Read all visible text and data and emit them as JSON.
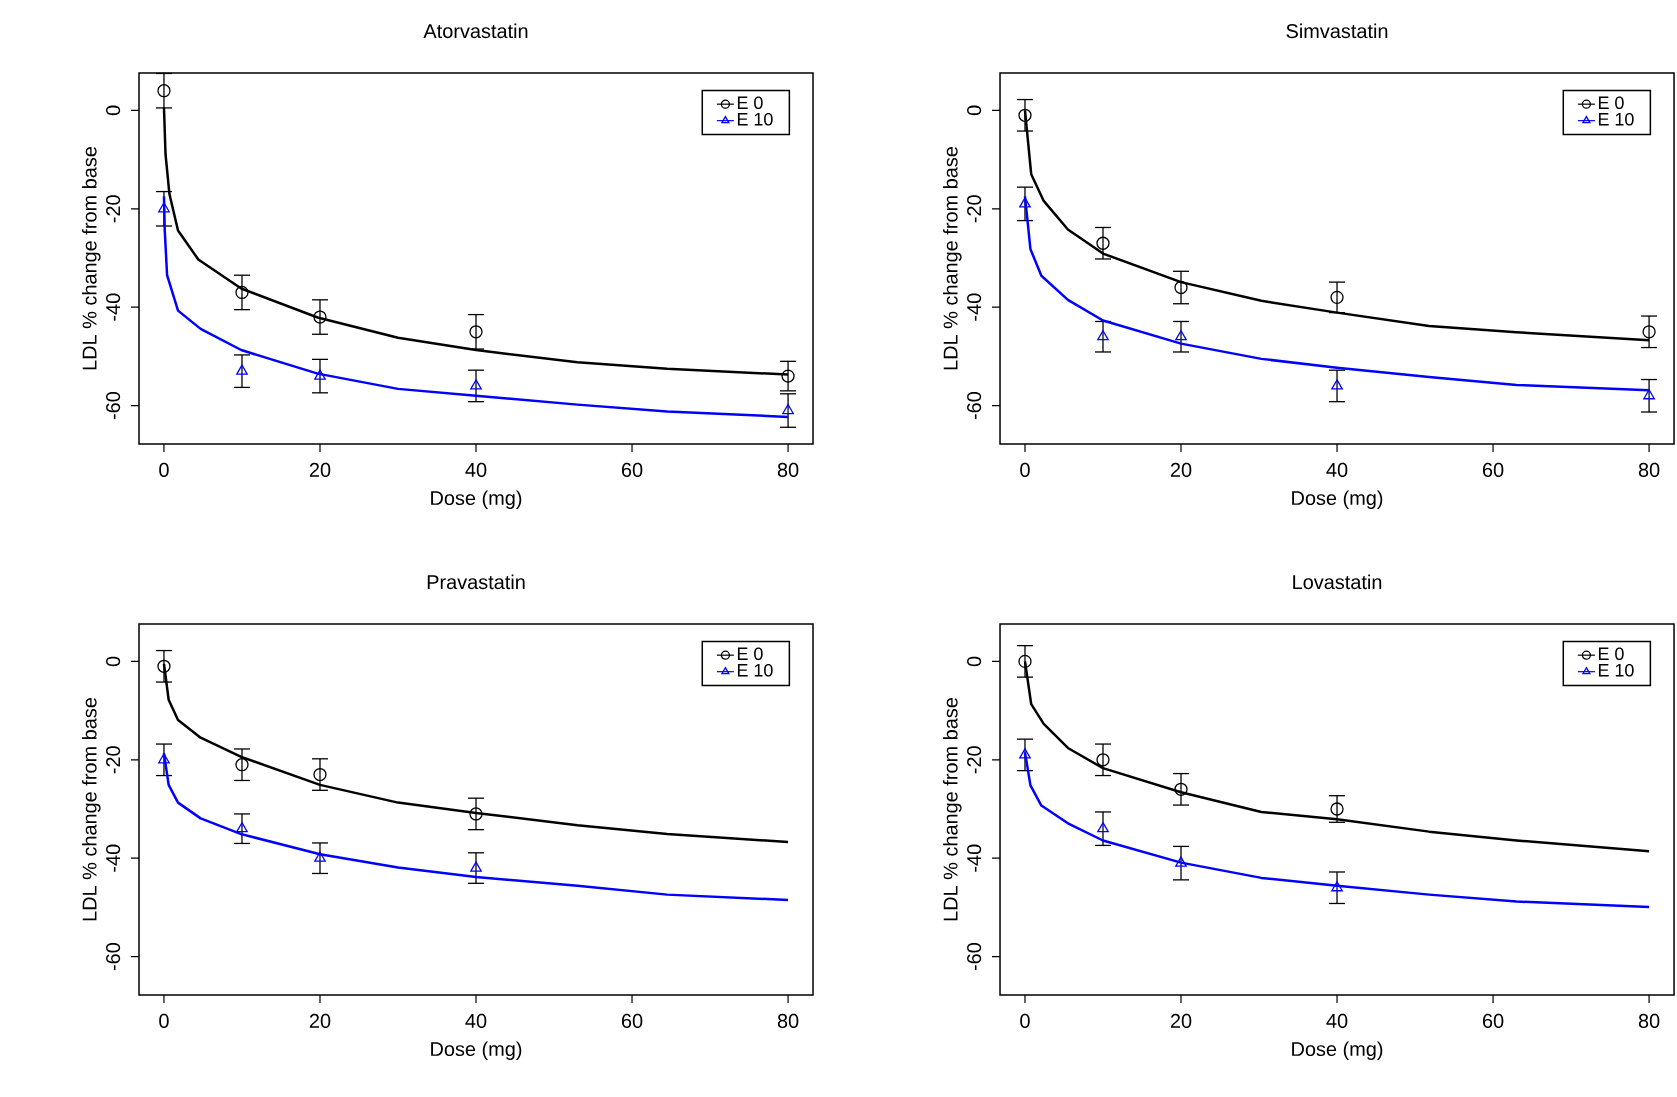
{
  "chart_data": [
    {
      "type": "scatter",
      "title": "Atorvastatin",
      "xlabel": "Dose (mg)",
      "ylabel": "LDL % change from base",
      "xlim": [
        -3.2,
        83.2
      ],
      "ylim": [
        -67.8,
        7.6
      ],
      "xticks": [
        0,
        20,
        40,
        60,
        80
      ],
      "yticks": [
        -60,
        -40,
        -20,
        0
      ],
      "legend": "top right",
      "series": [
        {
          "name": "E 0",
          "type": "scatter",
          "marker": "circle",
          "color": "#000000",
          "x": [
            0,
            10,
            20,
            40,
            80
          ],
          "values": [
            4,
            -37,
            -42,
            -45,
            -54
          ],
          "errors": [
            3.5,
            3.5,
            3.5,
            3.5,
            3
          ]
        },
        {
          "name": "E 10",
          "type": "scatter",
          "marker": "triangle",
          "color": "#0000ff",
          "x": [
            0,
            10,
            20,
            40,
            80
          ],
          "values": [
            -20,
            -53,
            -54,
            -56,
            -61
          ],
          "errors": [
            3.5,
            3.3,
            3.4,
            3.2,
            3.4
          ]
        },
        {
          "type": "line",
          "color": "#000000",
          "x": [
            0,
            0.2,
            0.7,
            1.8,
            4.4,
            9.9,
            19.7,
            30,
            40,
            53,
            64.5,
            80
          ],
          "values": [
            0.6,
            -8.9,
            -17,
            -24.4,
            -30.3,
            -36.2,
            -42.1,
            -46.2,
            -48.7,
            -51.2,
            -52.5,
            -53.7
          ]
        },
        {
          "type": "line",
          "color": "#0000ff",
          "x": [
            0,
            0.1,
            0.4,
            1.8,
            4.7,
            9.9,
            19.7,
            30,
            40,
            53,
            64.5,
            80
          ],
          "values": [
            -17.5,
            -24.4,
            -33.5,
            -40.7,
            -44.4,
            -48.7,
            -53.5,
            -56.6,
            -58,
            -59.8,
            -61.2,
            -62.3
          ]
        }
      ]
    },
    {
      "type": "scatter",
      "title": "Simvastatin",
      "xlabel": "Dose (mg)",
      "ylabel": "LDL % change from base",
      "xlim": [
        -3.2,
        83.2
      ],
      "ylim": [
        -67.8,
        7.6
      ],
      "xticks": [
        0,
        20,
        40,
        60,
        80
      ],
      "yticks": [
        -60,
        -40,
        -20,
        0
      ],
      "legend": "top right",
      "series": [
        {
          "name": "E 0",
          "type": "scatter",
          "marker": "circle",
          "color": "#000000",
          "x": [
            0,
            10,
            20,
            40,
            80
          ],
          "values": [
            -1,
            -27,
            -36,
            -38,
            -45
          ],
          "errors": [
            3.2,
            3.2,
            3.3,
            3.1,
            3.2
          ]
        },
        {
          "name": "E 10",
          "type": "scatter",
          "marker": "triangle",
          "color": "#0000ff",
          "x": [
            0,
            10,
            20,
            40,
            80
          ],
          "values": [
            -19,
            -46,
            -46,
            -56,
            -58
          ],
          "errors": [
            3.4,
            3.1,
            3.1,
            3.2,
            3.3
          ]
        },
        {
          "type": "line",
          "color": "#000000",
          "x": [
            0,
            0.8,
            2.4,
            5.5,
            10,
            20,
            30.3,
            40,
            51.8,
            63,
            80
          ],
          "values": [
            0,
            -13,
            -18.4,
            -24.2,
            -29.1,
            -34.9,
            -38.7,
            -41.1,
            -43.8,
            -45.1,
            -46.7
          ]
        },
        {
          "type": "line",
          "color": "#0000ff",
          "x": [
            0,
            0.7,
            2.1,
            5.5,
            10,
            20,
            30.3,
            40,
            51.8,
            63,
            80
          ],
          "values": [
            -17.5,
            -28.2,
            -33.6,
            -38.5,
            -42.7,
            -47.4,
            -50.5,
            -52.3,
            -54.2,
            -55.8,
            -56.9
          ]
        }
      ]
    },
    {
      "type": "scatter",
      "title": "Pravastatin",
      "xlabel": "Dose (mg)",
      "ylabel": "LDL % change from base",
      "xlim": [
        -3.2,
        83.2
      ],
      "ylim": [
        -67.8,
        7.6
      ],
      "xticks": [
        0,
        20,
        40,
        60,
        80
      ],
      "yticks": [
        -60,
        -40,
        -20,
        0
      ],
      "legend": "top right",
      "series": [
        {
          "name": "E 0",
          "type": "scatter",
          "marker": "circle",
          "color": "#000000",
          "x": [
            0,
            10,
            20,
            40
          ],
          "values": [
            -1,
            -21,
            -23,
            -31
          ],
          "errors": [
            3.2,
            3.2,
            3.2,
            3.2
          ]
        },
        {
          "name": "E 10",
          "type": "scatter",
          "marker": "triangle",
          "color": "#0000ff",
          "x": [
            0,
            10,
            20,
            40
          ],
          "values": [
            -20,
            -34,
            -40,
            -42
          ],
          "errors": [
            3.2,
            3,
            3.1,
            3.1
          ]
        },
        {
          "type": "line",
          "color": "#000000",
          "x": [
            0,
            0.6,
            1.8,
            4.7,
            9.9,
            20,
            30,
            40,
            53,
            64.5,
            80
          ],
          "values": [
            -0.5,
            -7.8,
            -11.9,
            -15.5,
            -19.4,
            -25.1,
            -28.7,
            -30.8,
            -33.3,
            -35.1,
            -36.7
          ]
        },
        {
          "type": "line",
          "color": "#0000ff",
          "x": [
            0,
            0.6,
            1.8,
            4.7,
            9.9,
            20,
            30,
            40,
            53,
            64.5,
            80
          ],
          "values": [
            -18.7,
            -25.1,
            -28.7,
            -31.9,
            -35.1,
            -39.2,
            -41.9,
            -43.8,
            -45.6,
            -47.4,
            -48.5
          ]
        }
      ]
    },
    {
      "type": "scatter",
      "title": "Lovastatin",
      "xlabel": "Dose (mg)",
      "ylabel": "LDL % change from base",
      "xlim": [
        -3.2,
        83.2
      ],
      "ylim": [
        -67.8,
        7.6
      ],
      "xticks": [
        0,
        20,
        40,
        60,
        80
      ],
      "yticks": [
        -60,
        -40,
        -20,
        0
      ],
      "legend": "top right",
      "series": [
        {
          "name": "E 0",
          "type": "scatter",
          "marker": "circle",
          "color": "#000000",
          "x": [
            0,
            10,
            20,
            40
          ],
          "values": [
            0,
            -20,
            -26,
            -30
          ],
          "errors": [
            3.2,
            3.2,
            3.2,
            2.7
          ]
        },
        {
          "name": "E 10",
          "type": "scatter",
          "marker": "triangle",
          "color": "#0000ff",
          "x": [
            0,
            10,
            20,
            40
          ],
          "values": [
            -19,
            -34,
            -41,
            -46
          ],
          "errors": [
            3.2,
            3.4,
            3.4,
            3.2
          ]
        },
        {
          "type": "line",
          "color": "#000000",
          "x": [
            0,
            0.8,
            2.4,
            5.5,
            10,
            20,
            30.3,
            40,
            51.8,
            63,
            80
          ],
          "values": [
            0,
            -8.7,
            -12.7,
            -17.6,
            -21.7,
            -26.6,
            -30.6,
            -32.1,
            -34.6,
            -36.4,
            -38.6
          ]
        },
        {
          "type": "line",
          "color": "#0000ff",
          "x": [
            0,
            0.7,
            2.1,
            5.5,
            10,
            20,
            30.3,
            40,
            51.8,
            63,
            80
          ],
          "values": [
            -18.5,
            -25.2,
            -29.3,
            -32.9,
            -36.4,
            -40.9,
            -44,
            -45.6,
            -47.4,
            -48.8,
            -49.9
          ]
        }
      ]
    }
  ]
}
